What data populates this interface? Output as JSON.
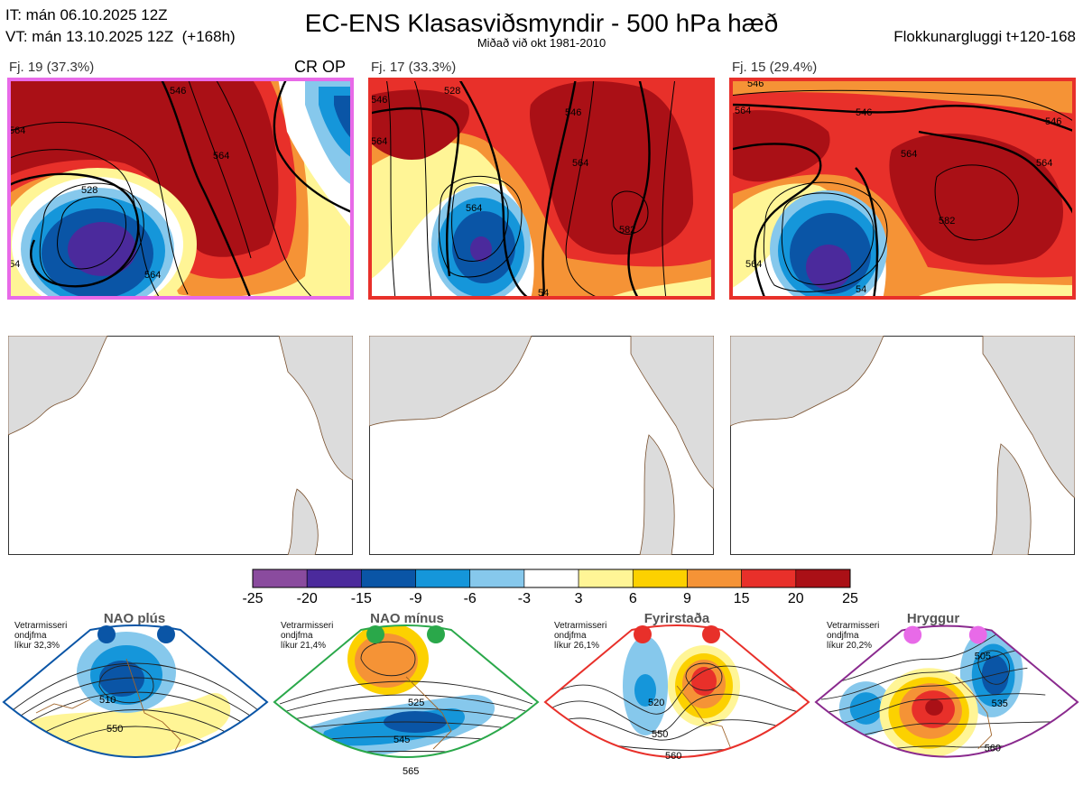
{
  "header": {
    "init_time": "IT: mán 06.10.2025 12Z",
    "valid_time": "VT: mán 13.10.2025 12Z  (+168h)",
    "title": "EC-ENS Klasasviðsmyndir - 500 hPa hæð",
    "subtitle": "Miðað við okt 1981-2010",
    "window": "Flokkunargluggi t+120-168"
  },
  "clusters": [
    {
      "label": "Fj. 19 (37.3%)",
      "frame_color": "#e86ae8",
      "contours": [
        "528",
        "546",
        "564",
        "564",
        "564",
        "54"
      ]
    },
    {
      "label": "Fj. 17 (33.3%)",
      "frame_color": "#e8302a",
      "contours": [
        "546",
        "528",
        "546",
        "564",
        "582",
        "564",
        "564",
        "54"
      ]
    },
    {
      "label": "Fj. 15 (29.4%)",
      "frame_color": "#e8302a",
      "contours": [
        "546",
        "564",
        "546",
        "564",
        "564",
        "546",
        "582",
        "564",
        "54"
      ]
    }
  ],
  "crop_label": "CR OP",
  "colorbar": {
    "ticks": [
      "-25",
      "-20",
      "-15",
      "-9",
      "-6",
      "-3",
      "3",
      "6",
      "9",
      "15",
      "20",
      "25"
    ],
    "colors": [
      "#8a4b9e",
      "#4b2a9c",
      "#0a55a6",
      "#1596da",
      "#86c8ec",
      "#ffffff",
      "#fff596",
      "#fcd100",
      "#f59336",
      "#e8302a",
      "#aa1016"
    ]
  },
  "regimes": [
    {
      "name": "NAO plús",
      "note_line1": "Vetrarmisseri",
      "note_line2": "ondjfma",
      "note_line3": "líkur 32,3%",
      "frame_color": "#0a55a6",
      "dot_color": "#0a55a6",
      "contours": [
        "510",
        "550"
      ]
    },
    {
      "name": "NAO mínus",
      "note_line1": "Vetrarmisseri",
      "note_line2": "ondjfma",
      "note_line3": "líkur 21,4%",
      "frame_color": "#2aa84a",
      "dot_color": "#2aa84a",
      "contours": [
        "525",
        "545",
        "565"
      ]
    },
    {
      "name": "Fyrirstaða",
      "note_line1": "Vetrarmisseri",
      "note_line2": "ondjfma",
      "note_line3": "líkur 26,1%",
      "frame_color": "#e8302a",
      "dot_color": "#e8302a",
      "contours": [
        "520",
        "550",
        "560"
      ]
    },
    {
      "name": "Hryggur",
      "note_line1": "Vetrarmisseri",
      "note_line2": "ondjfma",
      "note_line3": "líkur 20,2%",
      "frame_color": "#8a2a8e",
      "dot_color": "#e86ae8",
      "contours": [
        "505",
        "535",
        "560"
      ]
    }
  ]
}
